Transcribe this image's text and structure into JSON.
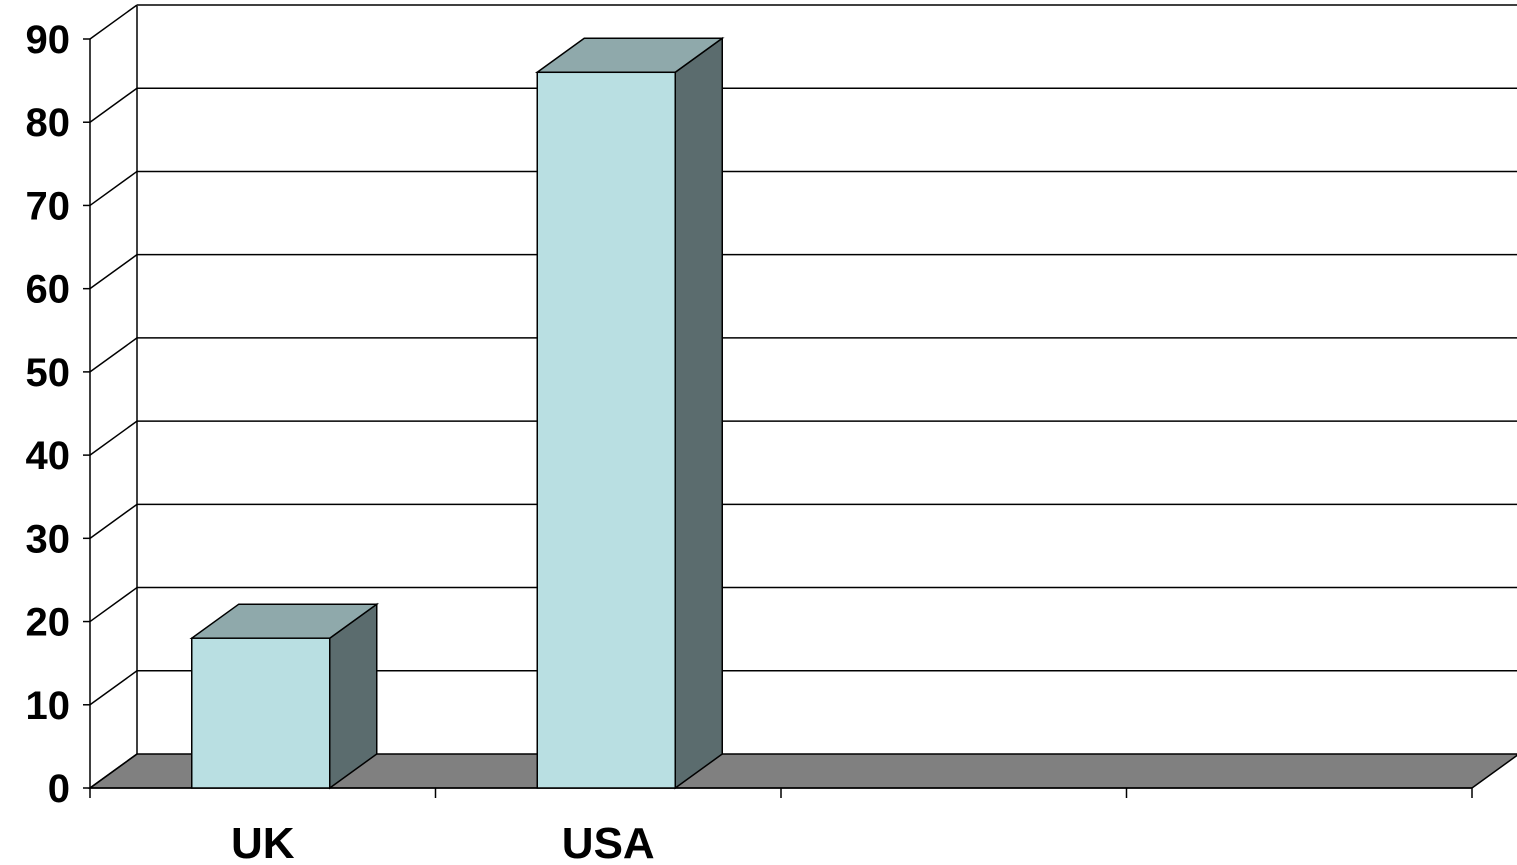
{
  "chart_data": {
    "type": "bar",
    "style": "3d",
    "categories": [
      "UK",
      "USA"
    ],
    "slot_count": 4,
    "values": [
      18,
      86
    ],
    "ylim": [
      0,
      90
    ],
    "yticks": [
      "0",
      "10",
      "20",
      "30",
      "40",
      "50",
      "60",
      "70",
      "80",
      "90"
    ],
    "grid": true,
    "legend": "none",
    "colors": {
      "bar_front": "#B9DFE2",
      "bar_top": "#8FA9AB",
      "bar_side": "#5B6C6E",
      "floor": "#808080",
      "grid": "#000000"
    }
  }
}
